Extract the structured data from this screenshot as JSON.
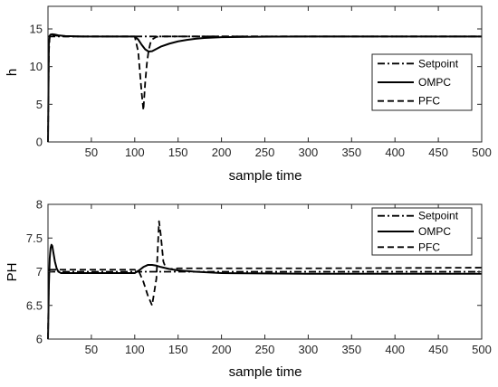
{
  "chart_data": [
    {
      "type": "line",
      "xlabel": "sample time",
      "ylabel": "h",
      "xlim": [
        0,
        500
      ],
      "ylim": [
        0,
        18
      ],
      "xticks": [
        50,
        100,
        150,
        200,
        250,
        300,
        350,
        400,
        450,
        500
      ],
      "yticks": [
        0,
        5,
        10,
        15
      ],
      "grid": false,
      "legend_position": "center-right",
      "series": [
        {
          "name": "Setpoint",
          "style": "dashdot",
          "color": "#000000",
          "x": [
            0,
            500
          ],
          "y": [
            14,
            14
          ]
        },
        {
          "name": "OMPC",
          "style": "solid",
          "color": "#000000",
          "x": [
            0,
            1,
            2,
            3,
            5,
            8,
            12,
            20,
            40,
            70,
            100,
            104,
            108,
            112,
            116,
            120,
            125,
            130,
            140,
            150,
            160,
            170,
            180,
            200,
            230,
            260,
            300,
            500
          ],
          "y": [
            0,
            13,
            14.1,
            14.25,
            14.3,
            14.25,
            14.15,
            14.05,
            14,
            14,
            14,
            13.6,
            12.9,
            12.3,
            12.0,
            12.05,
            12.35,
            12.65,
            13.05,
            13.35,
            13.55,
            13.7,
            13.8,
            13.9,
            13.95,
            13.98,
            14,
            14
          ]
        },
        {
          "name": "PFC",
          "style": "dashed",
          "color": "#000000",
          "x": [
            0,
            1,
            2,
            3,
            5,
            10,
            20,
            100,
            104,
            108,
            110,
            112,
            114,
            116,
            118,
            120,
            125,
            130,
            140,
            150,
            500
          ],
          "y": [
            0,
            12,
            14.1,
            14.2,
            14.2,
            14.1,
            14,
            14,
            12.0,
            6.5,
            4.2,
            7.8,
            10.4,
            12.1,
            13.1,
            13.6,
            13.95,
            14.0,
            14.0,
            14.0,
            14.0
          ]
        }
      ]
    },
    {
      "type": "line",
      "xlabel": "sample time",
      "ylabel": "PH",
      "xlim": [
        0,
        500
      ],
      "ylim": [
        6,
        8
      ],
      "xticks": [
        50,
        100,
        150,
        200,
        250,
        300,
        350,
        400,
        450,
        500
      ],
      "yticks": [
        6,
        6.5,
        7,
        7.5,
        8
      ],
      "grid": false,
      "legend_position": "top-right",
      "series": [
        {
          "name": "Setpoint",
          "style": "dashdot",
          "color": "#000000",
          "x": [
            0,
            500
          ],
          "y": [
            7,
            7
          ]
        },
        {
          "name": "OMPC",
          "style": "solid",
          "color": "#000000",
          "x": [
            0,
            1,
            2,
            3,
            4,
            5,
            6,
            8,
            10,
            12,
            15,
            20,
            30,
            60,
            100,
            105,
            110,
            115,
            120,
            125,
            130,
            140,
            150,
            170,
            200,
            300,
            500
          ],
          "y": [
            6.0,
            6.8,
            7.2,
            7.35,
            7.4,
            7.38,
            7.3,
            7.15,
            7.05,
            7.0,
            6.98,
            6.98,
            6.98,
            6.98,
            6.98,
            7.02,
            7.07,
            7.1,
            7.1,
            7.09,
            7.07,
            7.04,
            7.02,
            7.0,
            6.98,
            6.97,
            6.97
          ]
        },
        {
          "name": "PFC",
          "style": "dashed",
          "color": "#000000",
          "x": [
            0,
            1,
            2,
            3,
            10,
            50,
            100,
            105,
            110,
            115,
            120,
            125,
            128,
            130,
            133,
            136,
            140,
            150,
            200,
            300,
            500
          ],
          "y": [
            6.0,
            7.0,
            7.03,
            7.03,
            7.03,
            7.03,
            7.03,
            7.0,
            6.85,
            6.65,
            6.5,
            6.9,
            7.75,
            7.55,
            7.15,
            7.05,
            7.04,
            7.05,
            7.05,
            7.05,
            7.06
          ]
        }
      ]
    }
  ]
}
